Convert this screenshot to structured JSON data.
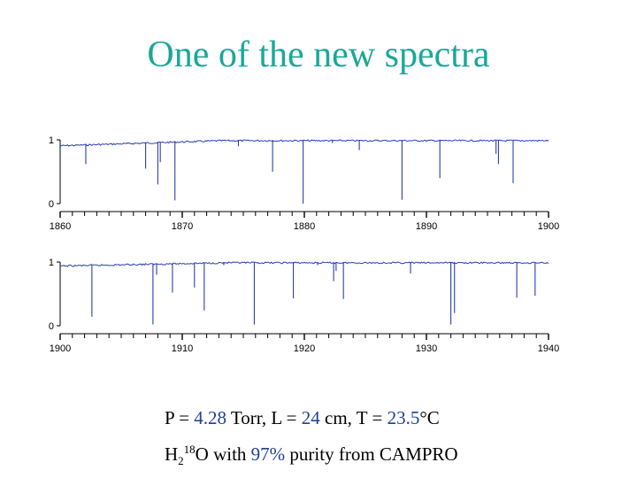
{
  "title": "One of the new spectra",
  "caption": {
    "p_label": "P = ",
    "p_value": "4.28",
    "p_unit": " Torr, L = ",
    "l_value": "24",
    "l_unit": " cm, T = ",
    "t_value": "23.5",
    "t_unit": "°C",
    "h": "H",
    "sub2": "2",
    "sup18": "18",
    "o_with": "O with ",
    "purity": "97%",
    "rest": " purity from CAMPRO"
  },
  "colors": {
    "title": "#1aa898",
    "line": "#2b3fb0",
    "highlight": "#1f3e9a"
  },
  "chart_data": [
    {
      "type": "line",
      "xlim": [
        1860,
        1900
      ],
      "ylim": [
        0,
        1
      ],
      "x_ticks": [
        "1860",
        "1870",
        "1880",
        "1890",
        "1900"
      ],
      "y_ticks": [
        "0",
        "1"
      ],
      "baseline_start": 0.92,
      "baseline_end": 1.0,
      "lines": [
        {
          "x": 1862.1,
          "y": 0.62
        },
        {
          "x": 1865.5,
          "y": 0.94
        },
        {
          "x": 1867.0,
          "y": 0.55
        },
        {
          "x": 1868.0,
          "y": 0.3
        },
        {
          "x": 1868.2,
          "y": 0.65
        },
        {
          "x": 1869.4,
          "y": 0.05
        },
        {
          "x": 1874.6,
          "y": 0.9
        },
        {
          "x": 1877.4,
          "y": 0.5
        },
        {
          "x": 1879.9,
          "y": 0.0
        },
        {
          "x": 1882.3,
          "y": 0.95
        },
        {
          "x": 1884.5,
          "y": 0.84
        },
        {
          "x": 1888.0,
          "y": 0.06
        },
        {
          "x": 1891.1,
          "y": 0.4
        },
        {
          "x": 1895.7,
          "y": 0.78
        },
        {
          "x": 1895.9,
          "y": 0.62
        },
        {
          "x": 1897.1,
          "y": 0.32
        }
      ]
    },
    {
      "type": "line",
      "xlim": [
        1900,
        1940
      ],
      "ylim": [
        0,
        1
      ],
      "x_ticks": [
        "1900",
        "1910",
        "1920",
        "1930",
        "1940"
      ],
      "y_ticks": [
        "0",
        "1"
      ],
      "baseline_start": 0.95,
      "baseline_end": 1.0,
      "lines": [
        {
          "x": 1902.6,
          "y": 0.14
        },
        {
          "x": 1907.6,
          "y": 0.02
        },
        {
          "x": 1907.9,
          "y": 0.8
        },
        {
          "x": 1909.2,
          "y": 0.52
        },
        {
          "x": 1911.0,
          "y": 0.6
        },
        {
          "x": 1911.8,
          "y": 0.24
        },
        {
          "x": 1913.4,
          "y": 0.95
        },
        {
          "x": 1915.9,
          "y": 0.02
        },
        {
          "x": 1919.1,
          "y": 0.43
        },
        {
          "x": 1921.1,
          "y": 0.95
        },
        {
          "x": 1922.4,
          "y": 0.7
        },
        {
          "x": 1922.6,
          "y": 0.86
        },
        {
          "x": 1923.2,
          "y": 0.42
        },
        {
          "x": 1928.7,
          "y": 0.82
        },
        {
          "x": 1932.0,
          "y": 0.02
        },
        {
          "x": 1932.3,
          "y": 0.2
        },
        {
          "x": 1937.4,
          "y": 0.44
        },
        {
          "x": 1938.9,
          "y": 0.47
        }
      ]
    }
  ]
}
